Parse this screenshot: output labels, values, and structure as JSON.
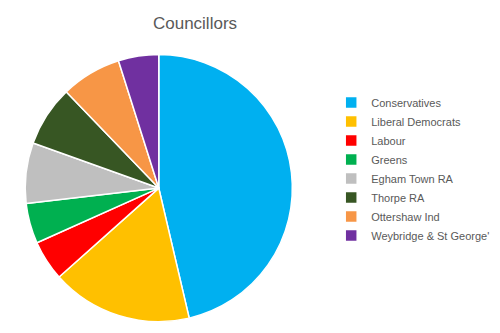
{
  "chart_data": {
    "type": "pie",
    "title": "Councillors",
    "categories": [
      "Conservatives",
      "Liberal Democrats",
      "Labour",
      "Greens",
      "Egham Town RA",
      "Thorpe RA",
      "Ottershaw Ind",
      "Weybridge & St George'"
    ],
    "values": [
      19,
      7,
      2,
      2,
      3,
      3,
      3,
      2
    ],
    "colors": [
      "#00b0f0",
      "#ffc000",
      "#ff0000",
      "#00b050",
      "#bfbfbf",
      "#375623",
      "#f79646",
      "#7030a0"
    ],
    "legend": "right"
  }
}
